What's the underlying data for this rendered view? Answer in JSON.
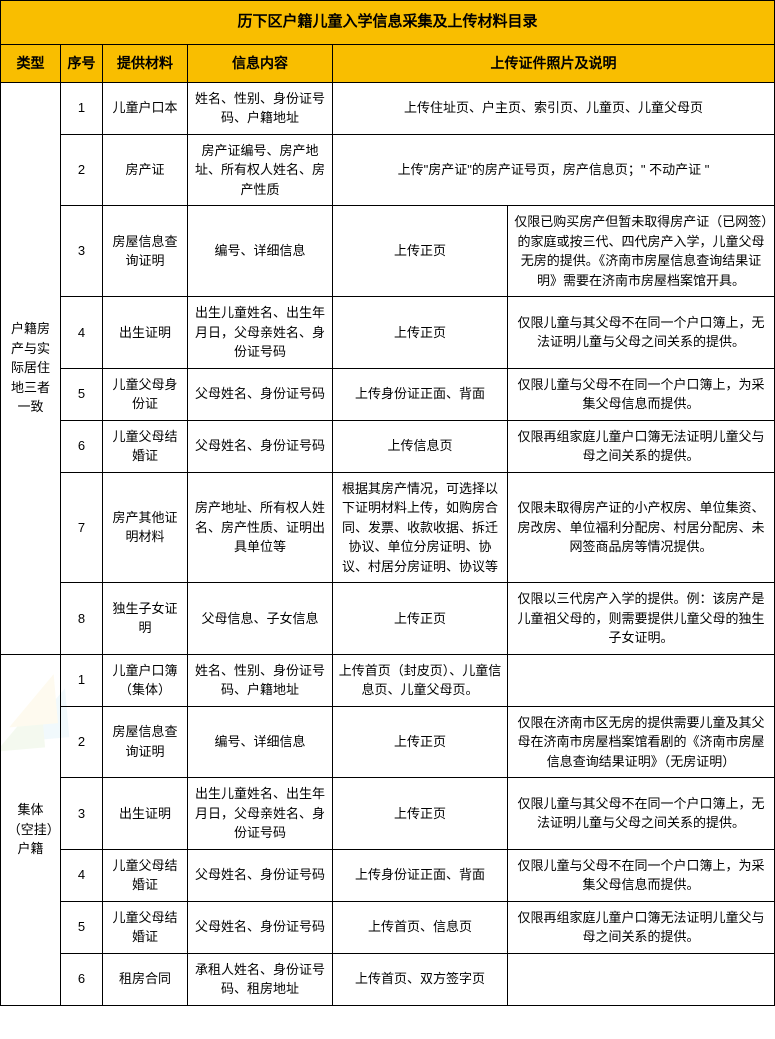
{
  "title": "历下区户籍儿童入学信息采集及上传材料目录",
  "headers": {
    "type": "类型",
    "seq": "序号",
    "material": "提供材料",
    "info": "信息内容",
    "upload": "上传证件照片及说明"
  },
  "colors": {
    "header_bg": "#f9be00",
    "border": "#000000",
    "text": "#000000"
  },
  "group1": {
    "label": "户籍房产与实际居住地三者一致",
    "rows": [
      {
        "seq": "1",
        "mat": "儿童户口本",
        "info": "姓名、性别、身份证号码、户籍地址",
        "up1": "上传住址页、户主页、索引页、儿童页、儿童父母页",
        "up2": ""
      },
      {
        "seq": "2",
        "mat": "房产证",
        "info": "房产证编号、房产地址、所有权人姓名、房产性质",
        "up1": "上传\"房产证\"的房产证号页，房产信息页；\" 不动产证 \"",
        "up2": ""
      },
      {
        "seq": "3",
        "mat": "房屋信息查询证明",
        "info": "编号、详细信息",
        "up1": "上传正页",
        "up2": "仅限已购买房产但暂未取得房产证（已网签）的家庭或按三代、四代房产入学，儿童父母无房的提供。《济南市房屋信息查询结果证明》需要在济南市房屋档案馆开具。"
      },
      {
        "seq": "4",
        "mat": "出生证明",
        "info": "出生儿童姓名、出生年月日，父母亲姓名、身份证号码",
        "up1": "上传正页",
        "up2": "仅限儿童与其父母不在同一个户口簿上，无法证明儿童与父母之间关系的提供。"
      },
      {
        "seq": "5",
        "mat": "儿童父母身份证",
        "info": "父母姓名、身份证号码",
        "up1": "上传身份证正面、背面",
        "up2": "仅限儿童与父母不在同一个户口簿上，为采集父母信息而提供。"
      },
      {
        "seq": "6",
        "mat": "儿童父母结婚证",
        "info": "父母姓名、身份证号码",
        "up1": "上传信息页",
        "up2": "仅限再组家庭儿童户口簿无法证明儿童父与母之间关系的提供。"
      },
      {
        "seq": "7",
        "mat": "房产其他证明材料",
        "info": "房产地址、所有权人姓名、房产性质、证明出具单位等",
        "up1": "根据其房产情况，可选择以下证明材料上传，如购房合同、发票、收款收据、拆迁协议、单位分房证明、协议、村居分房证明、协议等",
        "up2": "仅限未取得房产证的小产权房、单位集资、房改房、单位福利分配房、村居分配房、未网签商品房等情况提供。"
      },
      {
        "seq": "8",
        "mat": "独生子女证明",
        "info": "父母信息、子女信息",
        "up1": "上传正页",
        "up2": "仅限以三代房产入学的提供。例：该房产是儿童祖父母的，则需要提供儿童父母的独生子女证明。"
      }
    ]
  },
  "group2": {
    "label": "集体（空挂）户籍",
    "rows": [
      {
        "seq": "1",
        "mat": "儿童户口簿（集体）",
        "info": "姓名、性别、身份证号码、户籍地址",
        "up1": "上传首页（封皮页）、儿童信息页、儿童父母页。",
        "up2": ""
      },
      {
        "seq": "2",
        "mat": "房屋信息查询证明",
        "info": "编号、详细信息",
        "up1": "上传正页",
        "up2": "仅限在济南市区无房的提供需要儿童及其父母在济南市房屋档案馆看剧的《济南市房屋信息查询结果证明》（无房证明）"
      },
      {
        "seq": "3",
        "mat": "出生证明",
        "info": "出生儿童姓名、出生年月日，父母亲姓名、身份证号码",
        "up1": "上传正页",
        "up2": "仅限儿童与其父母不在同一个户口簿上，无法证明儿童与父母之间关系的提供。"
      },
      {
        "seq": "4",
        "mat": "儿童父母结婚证",
        "info": "父母姓名、身份证号码",
        "up1": "上传身份证正面、背面",
        "up2": "仅限儿童与父母不在同一个户口簿上，为采集父母信息而提供。"
      },
      {
        "seq": "5",
        "mat": "儿童父母结婚证",
        "info": "父母姓名、身份证号码",
        "up1": "上传首页、信息页",
        "up2": "仅限再组家庭儿童户口簿无法证明儿童父与母之间关系的提供。"
      },
      {
        "seq": "6",
        "mat": "租房合同",
        "info": "承租人姓名、身份证号码、租房地址",
        "up1": "上传首页、双方签字页",
        "up2": ""
      }
    ]
  }
}
